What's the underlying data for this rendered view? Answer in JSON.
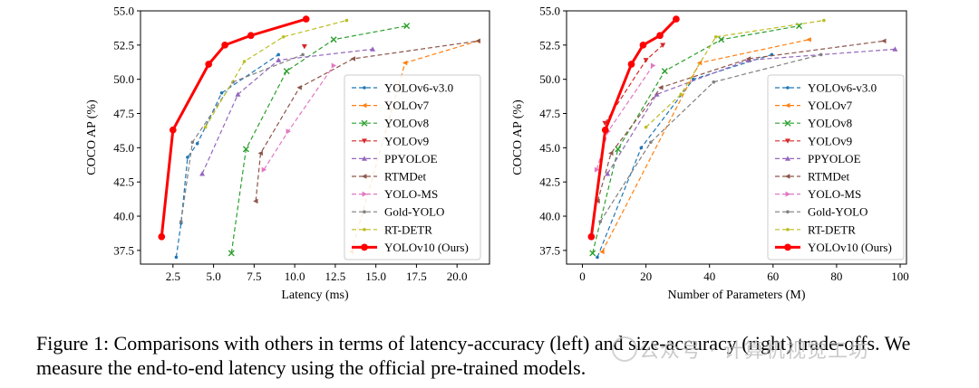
{
  "figure": {
    "caption": "Figure 1: Comparisons with others in terms of latency-accuracy (left) and size-accuracy (right) trade-offs. We measure the end-to-end latency using the official pre-trained models.",
    "watermark": "公众号 · 计算机视觉工坊"
  },
  "chart_data": [
    {
      "type": "line",
      "xlabel": "Latency (ms)",
      "ylabel": "COCO AP (%)",
      "xlim": [
        0.5,
        22.0
      ],
      "ylim": [
        36.5,
        55.0
      ],
      "xticks": [
        "2.5",
        "5.0",
        "7.5",
        "10.0",
        "12.5",
        "15.0",
        "17.5",
        "20.0"
      ],
      "yticks": [
        "37.5",
        "40.0",
        "42.5",
        "45.0",
        "47.5",
        "50.0",
        "52.5",
        "55.0"
      ],
      "grid": false,
      "legend_position": "lower-right",
      "series": [
        {
          "name": "YOLOv6-v3.0",
          "color": "#1f77b4",
          "marker": "point",
          "x": [
            2.7,
            3.0,
            3.4,
            4.0,
            5.5,
            9.0
          ],
          "y": [
            37.0,
            39.5,
            44.3,
            45.3,
            49.0,
            51.8
          ]
        },
        {
          "name": "YOLOv7",
          "color": "#ff7f0e",
          "marker": "tri_left",
          "x": [
            13.5,
            16.8,
            21.3
          ],
          "y": [
            37.4,
            51.2,
            52.8
          ]
        },
        {
          "name": "YOLOv8",
          "color": "#2ca02c",
          "marker": "x",
          "x": [
            6.1,
            7.0,
            9.5,
            12.4,
            16.9
          ],
          "y": [
            37.3,
            44.9,
            50.6,
            52.9,
            53.9
          ]
        },
        {
          "name": "YOLOv9",
          "color": "#d62728",
          "marker": "triangle_down",
          "x": [
            10.6
          ],
          "y": [
            52.4
          ]
        },
        {
          "name": "PPYOLOE",
          "color": "#9467bd",
          "marker": "triangle_up",
          "x": [
            4.3,
            6.5,
            9.0,
            14.8
          ],
          "y": [
            43.1,
            48.9,
            51.4,
            52.2
          ]
        },
        {
          "name": "RTMDet",
          "color": "#8c564b",
          "marker": "tri_left",
          "x": [
            7.6,
            7.9,
            10.3,
            13.6,
            21.3
          ],
          "y": [
            41.1,
            44.6,
            49.4,
            51.5,
            52.8
          ]
        },
        {
          "name": "YOLO-MS",
          "color": "#e377c2",
          "marker": "triangle_right",
          "x": [
            8.1,
            9.6,
            12.4
          ],
          "y": [
            43.4,
            46.2,
            51.0
          ]
        },
        {
          "name": "Gold-YOLO",
          "color": "#7f7f7f",
          "marker": "point",
          "x": [
            3.0,
            3.7,
            6.2,
            10.5
          ],
          "y": [
            39.6,
            45.4,
            49.8,
            51.8
          ]
        },
        {
          "name": "RT-DETR",
          "color": "#bcbd22",
          "marker": "point",
          "x": [
            4.5,
            6.9,
            9.3,
            13.2
          ],
          "y": [
            46.5,
            51.3,
            53.1,
            54.3
          ]
        },
        {
          "name": "YOLOv10 (Ours)",
          "color": "#ff0000",
          "marker": "dot",
          "x": [
            1.8,
            2.5,
            4.7,
            5.7,
            7.3,
            10.7
          ],
          "y": [
            38.5,
            46.3,
            51.1,
            52.5,
            53.2,
            54.4
          ]
        }
      ]
    },
    {
      "type": "line",
      "xlabel": "Number of Parameters (M)",
      "ylabel": "COCO AP (%)",
      "xlim": [
        -5,
        102
      ],
      "ylim": [
        36.5,
        55.0
      ],
      "xticks": [
        "0",
        "20",
        "40",
        "60",
        "80",
        "100"
      ],
      "yticks": [
        "37.5",
        "40.0",
        "42.5",
        "45.0",
        "47.5",
        "50.0",
        "52.5",
        "55.0"
      ],
      "grid": false,
      "legend_position": "lower-right",
      "series": [
        {
          "name": "YOLOv6-v3.0",
          "color": "#1f77b4",
          "marker": "point",
          "x": [
            4.7,
            18.5,
            34.9,
            59.6
          ],
          "y": [
            37.0,
            45.0,
            50.0,
            51.8
          ]
        },
        {
          "name": "YOLOv7",
          "color": "#ff7f0e",
          "marker": "tri_left",
          "x": [
            6.2,
            36.9,
            71.3
          ],
          "y": [
            37.4,
            51.2,
            52.9
          ]
        },
        {
          "name": "YOLOv8",
          "color": "#2ca02c",
          "marker": "x",
          "x": [
            3.2,
            11.2,
            25.9,
            43.7,
            68.2
          ],
          "y": [
            37.3,
            44.9,
            50.6,
            52.9,
            53.9
          ]
        },
        {
          "name": "YOLOv9",
          "color": "#d62728",
          "marker": "triangle_down",
          "x": [
            7.1,
            20.0,
            25.3
          ],
          "y": [
            46.8,
            51.4,
            52.5
          ]
        },
        {
          "name": "PPYOLOE",
          "color": "#9467bd",
          "marker": "triangle_up",
          "x": [
            7.9,
            23.4,
            52.2,
            98.4
          ],
          "y": [
            43.1,
            48.9,
            51.4,
            52.2
          ]
        },
        {
          "name": "RTMDet",
          "color": "#8c564b",
          "marker": "tri_left",
          "x": [
            4.8,
            9.0,
            24.7,
            52.3,
            94.9
          ],
          "y": [
            41.1,
            44.6,
            49.4,
            51.5,
            52.8
          ]
        },
        {
          "name": "YOLO-MS",
          "color": "#e377c2",
          "marker": "triangle_right",
          "x": [
            4.5,
            8.1,
            22.2
          ],
          "y": [
            43.4,
            46.2,
            51.0
          ]
        },
        {
          "name": "Gold-YOLO",
          "color": "#7f7f7f",
          "marker": "point",
          "x": [
            5.6,
            21.5,
            41.3,
            75.1
          ],
          "y": [
            39.6,
            45.4,
            49.8,
            51.8
          ]
        },
        {
          "name": "RT-DETR",
          "color": "#bcbd22",
          "marker": "point",
          "x": [
            20.0,
            31.0,
            42.0,
            76.0
          ],
          "y": [
            46.5,
            48.9,
            53.1,
            54.3
          ]
        },
        {
          "name": "YOLOv10 (Ours)",
          "color": "#ff0000",
          "marker": "dot",
          "x": [
            2.8,
            7.2,
            15.4,
            19.1,
            24.4,
            29.5
          ],
          "y": [
            38.5,
            46.3,
            51.1,
            52.5,
            53.2,
            54.4
          ]
        }
      ]
    }
  ]
}
